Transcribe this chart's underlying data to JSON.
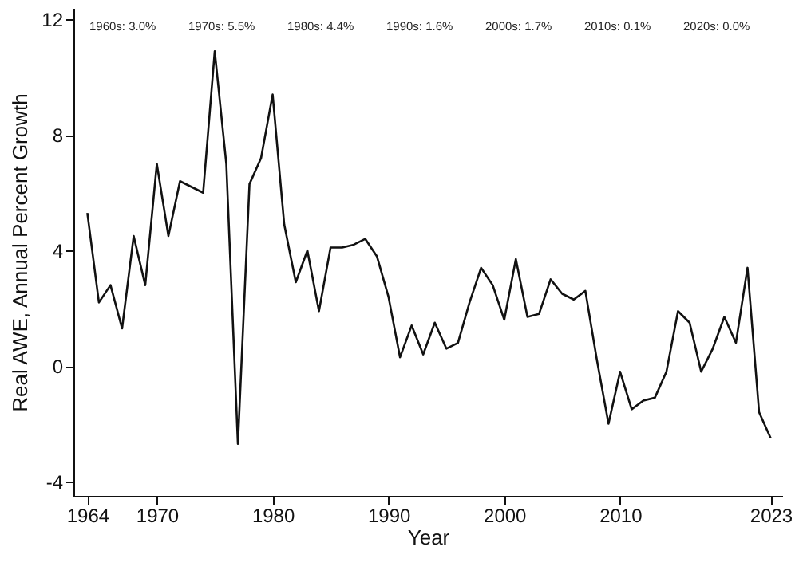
{
  "chart_data": {
    "type": "line",
    "xlabel": "Year",
    "ylabel": "Real AWE, Annual Percent Growth",
    "x": [
      1964,
      1965,
      1966,
      1967,
      1968,
      1969,
      1970,
      1971,
      1972,
      1973,
      1974,
      1975,
      1976,
      1977,
      1978,
      1979,
      1980,
      1981,
      1982,
      1983,
      1984,
      1985,
      1986,
      1987,
      1988,
      1989,
      1990,
      1991,
      1992,
      1993,
      1994,
      1995,
      1996,
      1997,
      1998,
      1999,
      2000,
      2001,
      2002,
      2003,
      2004,
      2005,
      2006,
      2007,
      2008,
      2009,
      2010,
      2011,
      2012,
      2013,
      2014,
      2015,
      2016,
      2017,
      2018,
      2019,
      2020,
      2021,
      2022,
      2023
    ],
    "series": [
      {
        "color": "#111111",
        "values": [
          5.3,
          2.2,
          2.8,
          1.3,
          4.5,
          2.8,
          7.0,
          4.5,
          6.4,
          6.2,
          6.0,
          10.9,
          7.0,
          -2.7,
          6.3,
          7.2,
          9.4,
          4.9,
          2.9,
          4.0,
          1.9,
          4.1,
          4.1,
          4.2,
          4.4,
          3.8,
          2.4,
          0.3,
          1.4,
          0.4,
          1.5,
          0.6,
          0.8,
          2.2,
          3.4,
          2.8,
          1.6,
          3.7,
          1.7,
          1.8,
          3.0,
          2.5,
          2.3,
          2.6,
          0.2,
          -2.0,
          -0.2,
          -1.5,
          -1.2,
          -1.1,
          -0.2,
          1.9,
          1.5,
          -0.2,
          0.6,
          1.7,
          0.8,
          3.4,
          -1.6,
          -2.5
        ]
      }
    ],
    "xlim": [
      1962.8,
      2024
    ],
    "xticks": [
      1964,
      1970,
      1980,
      1990,
      2000,
      2010,
      2023
    ],
    "ylim": [
      -4.5,
      12.4
    ],
    "yticks": [
      -4,
      0,
      4,
      8,
      12
    ],
    "grid": false,
    "marker": "none",
    "line_style": "solid",
    "annotations": [
      "1960s: 3.0%",
      "1970s: 5.5%",
      "1980s: 4.4%",
      "1990s: 1.6%",
      "2000s: 1.7%",
      "2010s: 0.1%",
      "2020s: 0.0%"
    ]
  }
}
